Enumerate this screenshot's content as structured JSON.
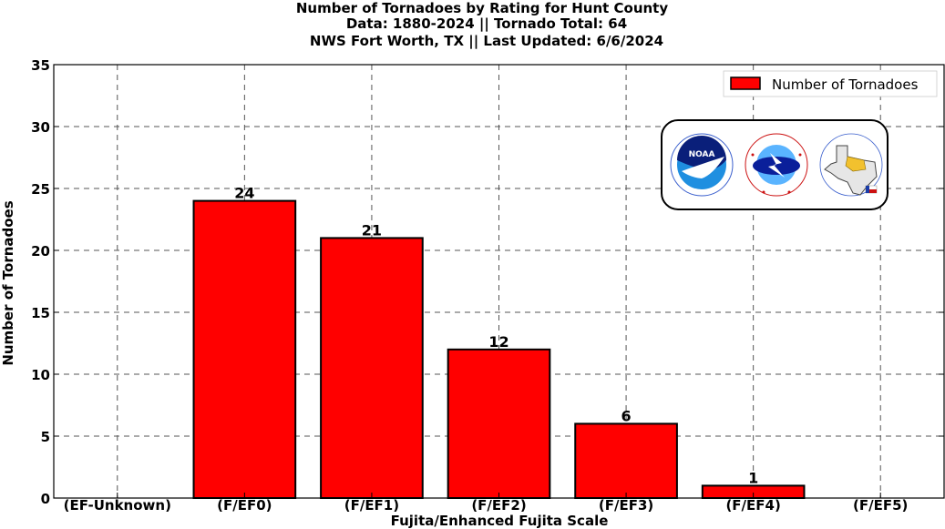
{
  "title_lines": [
    "Number of Tornadoes by Rating for Hunt County",
    "Data: 1880-2024 || Tornado Total: 64",
    "NWS Fort Worth, TX || Last Updated: 6/6/2024"
  ],
  "logos": {
    "noara_text": "NOAA",
    "items": [
      "noaa-logo",
      "national-weather-service-logo",
      "texas-map-logo"
    ]
  },
  "chart_data": {
    "type": "bar",
    "categories": [
      "(EF-Unknown)",
      "(F/EF0)",
      "(F/EF1)",
      "(F/EF2)",
      "(F/EF3)",
      "(F/EF4)",
      "(F/EF5)"
    ],
    "values": [
      0,
      24,
      21,
      12,
      6,
      1,
      0
    ],
    "data_labels": [
      "",
      "24",
      "21",
      "12",
      "6",
      "1",
      ""
    ],
    "series": [
      {
        "name": "Number of Tornadoes",
        "values": [
          0,
          24,
          21,
          12,
          6,
          1,
          0
        ]
      }
    ],
    "xlabel": "Fujita/Enhanced Fujita Scale",
    "ylabel": "Number of Tornadoes",
    "ylim": [
      0,
      35
    ],
    "yticks": [
      0,
      5,
      10,
      15,
      20,
      25,
      30,
      35
    ],
    "grid": true,
    "legend_position": "top-right",
    "bar_color": "#ff0000",
    "edge_color": "#000000"
  }
}
